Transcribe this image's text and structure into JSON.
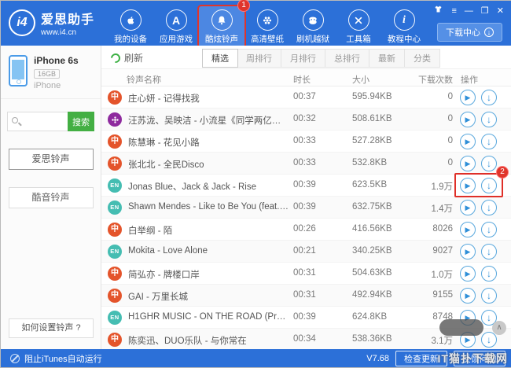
{
  "header": {
    "logo": {
      "mark": "i4",
      "title": "爱思助手",
      "url": "www.i4.cn"
    },
    "nav": [
      {
        "label": "我的设备",
        "icon": "apple-icon",
        "active": false
      },
      {
        "label": "应用游戏",
        "icon": "appstore-icon",
        "active": false
      },
      {
        "label": "酷炫铃声",
        "icon": "bell-icon",
        "active": true,
        "badge": "1"
      },
      {
        "label": "高清壁纸",
        "icon": "flower-icon",
        "active": false
      },
      {
        "label": "刷机越狱",
        "icon": "mask-icon",
        "active": false
      },
      {
        "label": "工具箱",
        "icon": "tools-icon",
        "active": false
      },
      {
        "label": "教程中心",
        "icon": "info-icon",
        "active": false
      }
    ],
    "download_center_label": "下载中心"
  },
  "sidebar": {
    "device": {
      "name": "iPhone 6s",
      "capacity": "16GB",
      "model": "iPhone"
    },
    "search": {
      "value": "",
      "button_label": "搜索"
    },
    "sources": [
      {
        "label": "爱思铃声",
        "active": true
      },
      {
        "label": "酷音铃声",
        "active": false
      }
    ],
    "help_button_label": "如何设置铃声 ?"
  },
  "toolbar": {
    "refresh_label": "刷新",
    "tabs": [
      {
        "label": "精选",
        "active": true
      },
      {
        "label": "周排行",
        "active": false
      },
      {
        "label": "月排行",
        "active": false
      },
      {
        "label": "总排行",
        "active": false
      },
      {
        "label": "最新",
        "active": false
      },
      {
        "label": "分类",
        "active": false
      }
    ]
  },
  "table": {
    "columns": [
      "铃声名称",
      "时长",
      "大小",
      "下载次数",
      "操作"
    ],
    "rows": [
      {
        "icon": "cn-music-icon",
        "name": "庄心妍 - 记得找我",
        "duration": "00:37",
        "size": "595.94KB",
        "downloads": "0"
      },
      {
        "icon": "flower-music-icon",
        "name": "汪苏泷、吴映洁 - 小流星《同学两亿岁》网剧片尾曲",
        "duration": "00:32",
        "size": "508.61KB",
        "downloads": "0"
      },
      {
        "icon": "cn-music-icon",
        "name": "陈慧琳 - 花见小路",
        "duration": "00:33",
        "size": "527.28KB",
        "downloads": "0"
      },
      {
        "icon": "cn-music-icon",
        "name": "张北北 - 全民Disco",
        "duration": "00:33",
        "size": "532.8KB",
        "downloads": "0"
      },
      {
        "icon": "en-music-icon",
        "name": "Jonas Blue、Jack & Jack - Rise",
        "duration": "00:39",
        "size": "623.5KB",
        "downloads": "1.9万",
        "highlighted": true,
        "badge": "2"
      },
      {
        "icon": "en-music-icon",
        "name": "Shawn Mendes - Like to Be You (feat. Julia Micha...",
        "duration": "00:39",
        "size": "632.75KB",
        "downloads": "1.4万"
      },
      {
        "icon": "cn-music-icon",
        "name": "白举纲 - 陌",
        "duration": "00:26",
        "size": "416.56KB",
        "downloads": "8026"
      },
      {
        "icon": "en-music-icon",
        "name": "Mokita - Love Alone",
        "duration": "00:21",
        "size": "340.25KB",
        "downloads": "9027"
      },
      {
        "icon": "cn-music-icon",
        "name": "简弘亦 - 牌楼口岸",
        "duration": "00:31",
        "size": "504.63KB",
        "downloads": "1.0万"
      },
      {
        "icon": "cn-music-icon",
        "name": "GAI - 万里长城",
        "duration": "00:31",
        "size": "492.94KB",
        "downloads": "9155"
      },
      {
        "icon": "en-music-icon",
        "name": "H1GHR MUSIC - ON THE ROAD (Prod. BIG BAN...",
        "duration": "00:39",
        "size": "624.8KB",
        "downloads": "8748"
      },
      {
        "icon": "cn-music-icon",
        "name": "陈奕迅、DUO乐队 - 与你常在",
        "duration": "00:34",
        "size": "538.36KB",
        "downloads": "3.1万"
      }
    ]
  },
  "footer": {
    "checkbox_label": "阻止iTunes自动运行",
    "version": "V7.68",
    "update_button_label": "检查更新",
    "feedback_button_label": "反馈问题"
  },
  "watermark": "IT猫扑下载网",
  "colors": {
    "brand_blue": "#2c70d8",
    "active_nav_blue": "#4c87e2",
    "callout_red": "#e0352b",
    "search_green": "#43af43",
    "action_blue": "#2f8fd8",
    "cn_source_orange": "#e4542b",
    "en_source_teal": "#45bdb2",
    "flower_source_purple": "#8e2a9e"
  }
}
